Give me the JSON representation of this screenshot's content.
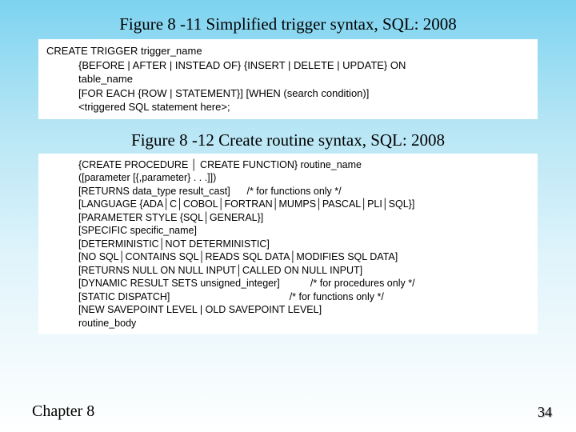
{
  "title1": "Figure 8 -11 Simplified trigger syntax, SQL: 2008",
  "title2": "Figure 8 -12 Create routine syntax, SQL: 2008",
  "code1": {
    "l0": "CREATE TRIGGER trigger_name",
    "l1": "{BEFORE | AFTER | INSTEAD OF} {INSERT | DELETE | UPDATE} ON",
    "l2": "table_name",
    "l3": "[FOR EACH {ROW | STATEMENT}] [WHEN (search condition)]",
    "l4": "<triggered SQL statement here>;"
  },
  "code2": {
    "l0": "{CREATE PROCEDURE │ CREATE FUNCTION} routine_name",
    "l1": "([parameter [{,parameter} . . .]])",
    "l2": "[RETURNS data_type result_cast]      /* for functions only */",
    "l3": "[LANGUAGE {ADA│C│COBOL│FORTRAN│MUMPS│PASCAL│PLI│SQL}]",
    "l4": "[PARAMETER STYLE {SQL│GENERAL}]",
    "l5": "[SPECIFIC specific_name]",
    "l6": "[DETERMINISTIC│NOT DETERMINISTIC]",
    "l7": "[NO SQL│CONTAINS SQL│READS SQL DATA│MODIFIES SQL DATA]",
    "l8": "[RETURNS NULL ON NULL INPUT│CALLED ON NULL INPUT]",
    "l9": "[DYNAMIC RESULT SETS unsigned_integer]           /* for procedures only */",
    "l10": "[STATIC DISPATCH]                                           /* for functions only */",
    "l11": "[NEW SAVEPOINT LEVEL | OLD SAVEPOINT LEVEL]",
    "l12": "routine_body"
  },
  "footer": {
    "chapter": "Chapter 8",
    "page": "34"
  },
  "colors": {
    "bg_top": "#7dd3f0",
    "bg_bottom": "#ffffff",
    "codebox_bg": "#ffffff",
    "text": "#000000"
  }
}
